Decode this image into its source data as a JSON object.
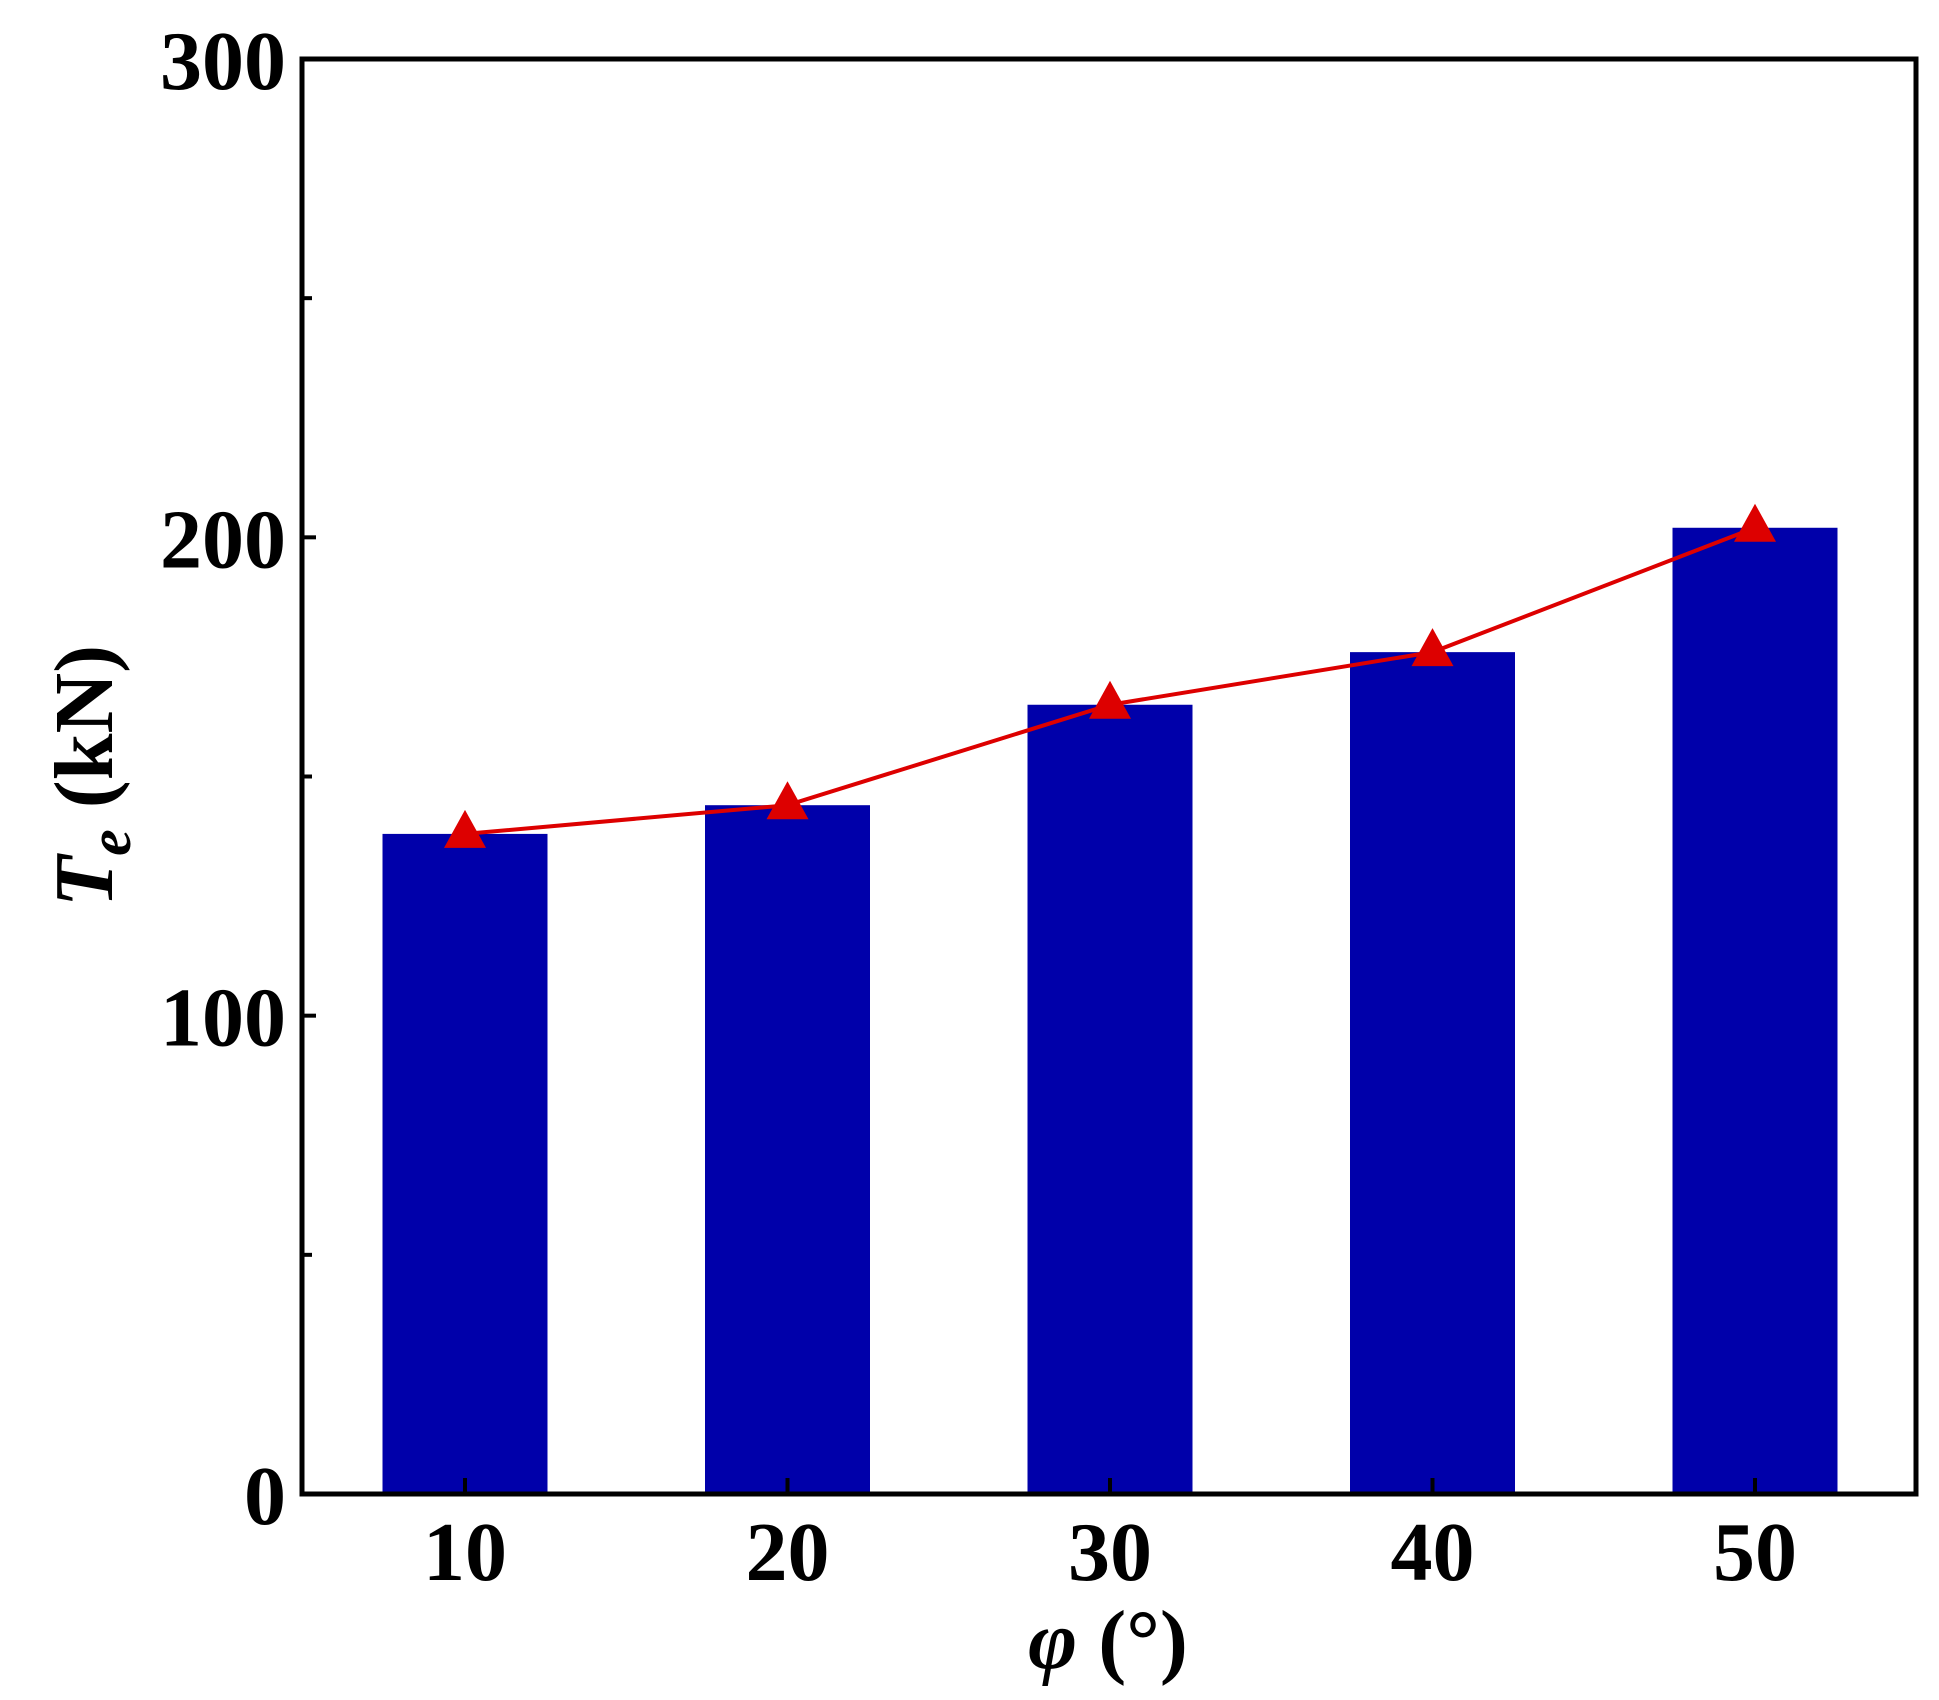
{
  "chart_data": {
    "type": "bar",
    "categories": [
      "10",
      "20",
      "30",
      "40",
      "50"
    ],
    "series": [
      {
        "type": "bar",
        "values": [
          138,
          144,
          165,
          176,
          202
        ],
        "color": "#0000aa"
      },
      {
        "type": "line",
        "marker": "triangle",
        "values": [
          138,
          144,
          165,
          176,
          202
        ],
        "color": "#dd0000"
      }
    ],
    "xlabel": {
      "main": "φ",
      "unit": "(°)"
    },
    "ylabel": {
      "main": "T",
      "subscript": "e",
      "unit": "(kN)"
    },
    "ylim": [
      0,
      300
    ],
    "yticks": [
      "0",
      "100",
      "200",
      "300"
    ],
    "y_minor_ticks": [
      50,
      150,
      250
    ],
    "grid": false,
    "legend": "none"
  }
}
